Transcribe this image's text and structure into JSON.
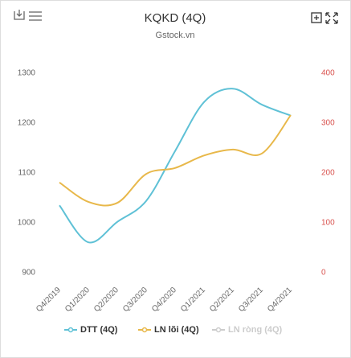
{
  "chart_data": {
    "type": "line",
    "title": "KQKD (4Q)",
    "subtitle": "Gstock.vn",
    "categories": [
      "Q4/2019",
      "Q1/2020",
      "Q2/2020",
      "Q3/2020",
      "Q4/2020",
      "Q1/2021",
      "Q2/2021",
      "Q3/2021",
      "Q4/2021"
    ],
    "series": [
      {
        "name": "DTT (4Q)",
        "color": "#5fc1d6",
        "values": [
          1035,
          961,
          1002,
          1044,
          1144,
          1242,
          1269,
          1237,
          1215
        ]
      },
      {
        "name": "LN lõi (4Q)",
        "color": "#e8b84a",
        "axis": "y2",
        "values": [
          181,
          142,
          140,
          198,
          210,
          235,
          247,
          239,
          316
        ]
      },
      {
        "name": "LN ròng (4Q)",
        "color": "#cccccc",
        "axis": "y2",
        "visible": false,
        "values": [
          null,
          null,
          null,
          null,
          null,
          null,
          null,
          null,
          null
        ]
      }
    ],
    "ylim": [
      900,
      1300
    ],
    "yticks": [
      900,
      1000,
      1100,
      1200,
      1300
    ],
    "y2lim": [
      0,
      400
    ],
    "y2ticks": [
      0,
      100,
      200,
      300,
      400
    ],
    "y2color": "#d9534f",
    "grid": false
  }
}
